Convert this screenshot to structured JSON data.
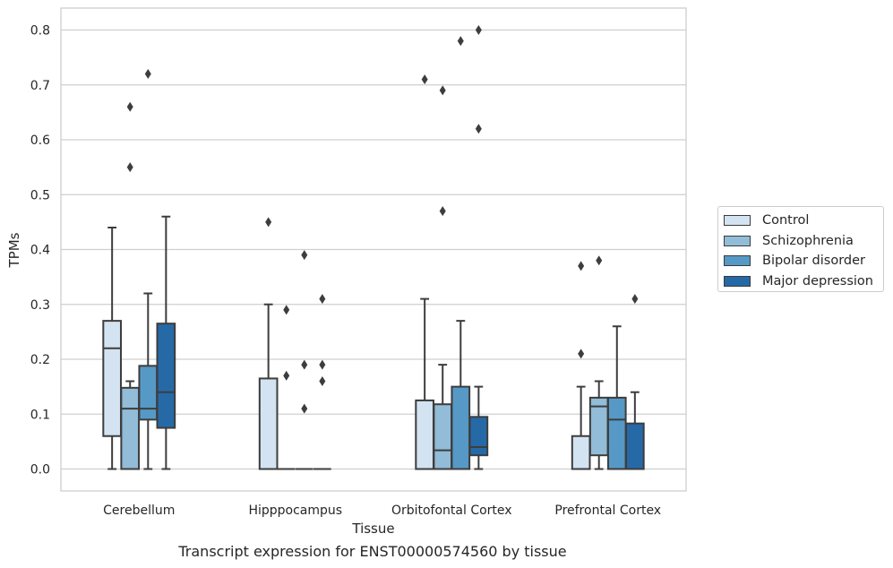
{
  "caption": "Transcript expression for ENST00000574560 by tissue",
  "chart_data": {
    "type": "box",
    "xlabel": "Tissue",
    "ylabel": "TPMs",
    "ylim": [
      -0.04,
      0.84
    ],
    "yticks": [
      "0.0",
      "0.1",
      "0.2",
      "0.3",
      "0.4",
      "0.5",
      "0.6",
      "0.7",
      "0.8"
    ],
    "grid": true,
    "legend_position": "right",
    "categories": [
      "Cerebellum",
      "Hipppocampus",
      "Orbitofontal Cortex",
      "Prefrontal Cortex"
    ],
    "series": [
      {
        "name": "Control",
        "color": "#d3e3f2",
        "boxes": [
          {
            "whislo": 0,
            "q1": 0.06,
            "med": 0.22,
            "q3": 0.27,
            "whishi": 0.44,
            "fliers": []
          },
          {
            "whislo": 0,
            "q1": 0,
            "med": 0,
            "q3": 0.165,
            "whishi": 0.3,
            "fliers": [
              0.45
            ]
          },
          {
            "whislo": 0,
            "q1": 0,
            "med": 0,
            "q3": 0.125,
            "whishi": 0.31,
            "fliers": [
              0.71
            ]
          },
          {
            "whislo": 0,
            "q1": 0,
            "med": 0,
            "q3": 0.06,
            "whishi": 0.15,
            "fliers": [
              0.21,
              0.37
            ]
          }
        ]
      },
      {
        "name": "Schizophrenia",
        "color": "#92bcd8",
        "boxes": [
          {
            "whislo": 0,
            "q1": 0,
            "med": 0.11,
            "q3": 0.148,
            "whishi": 0.16,
            "fliers": [
              0.55,
              0.66
            ]
          },
          {
            "whislo": 0,
            "q1": 0,
            "med": 0,
            "q3": 0,
            "whishi": 0,
            "fliers": [
              0.17,
              0.29
            ]
          },
          {
            "whislo": 0,
            "q1": 0,
            "med": 0.034,
            "q3": 0.118,
            "whishi": 0.19,
            "fliers": [
              0.47,
              0.69
            ]
          },
          {
            "whislo": 0,
            "q1": 0.025,
            "med": 0.114,
            "q3": 0.13,
            "whishi": 0.16,
            "fliers": [
              0.38
            ]
          }
        ]
      },
      {
        "name": "Bipolar disorder",
        "color": "#5699c6",
        "boxes": [
          {
            "whislo": 0,
            "q1": 0.09,
            "med": 0.11,
            "q3": 0.188,
            "whishi": 0.32,
            "fliers": [
              0.72
            ]
          },
          {
            "whislo": 0,
            "q1": 0,
            "med": 0,
            "q3": 0,
            "whishi": 0,
            "fliers": [
              0.11,
              0.19,
              0.39
            ]
          },
          {
            "whislo": 0,
            "q1": 0,
            "med": 0,
            "q3": 0.15,
            "whishi": 0.27,
            "fliers": [
              0.78
            ]
          },
          {
            "whislo": 0,
            "q1": 0,
            "med": 0.09,
            "q3": 0.13,
            "whishi": 0.26,
            "fliers": []
          }
        ]
      },
      {
        "name": "Major depression",
        "color": "#2669a7",
        "boxes": [
          {
            "whislo": 0,
            "q1": 0.075,
            "med": 0.14,
            "q3": 0.265,
            "whishi": 0.46,
            "fliers": []
          },
          {
            "whislo": 0,
            "q1": 0,
            "med": 0,
            "q3": 0,
            "whishi": 0,
            "fliers": [
              0.16,
              0.19,
              0.31
            ]
          },
          {
            "whislo": 0,
            "q1": 0.025,
            "med": 0.04,
            "q3": 0.095,
            "whishi": 0.15,
            "fliers": [
              0.62,
              0.8
            ]
          },
          {
            "whislo": 0,
            "q1": 0,
            "med": 0,
            "q3": 0.083,
            "whishi": 0.14,
            "fliers": [
              0.31
            ]
          }
        ]
      }
    ]
  }
}
